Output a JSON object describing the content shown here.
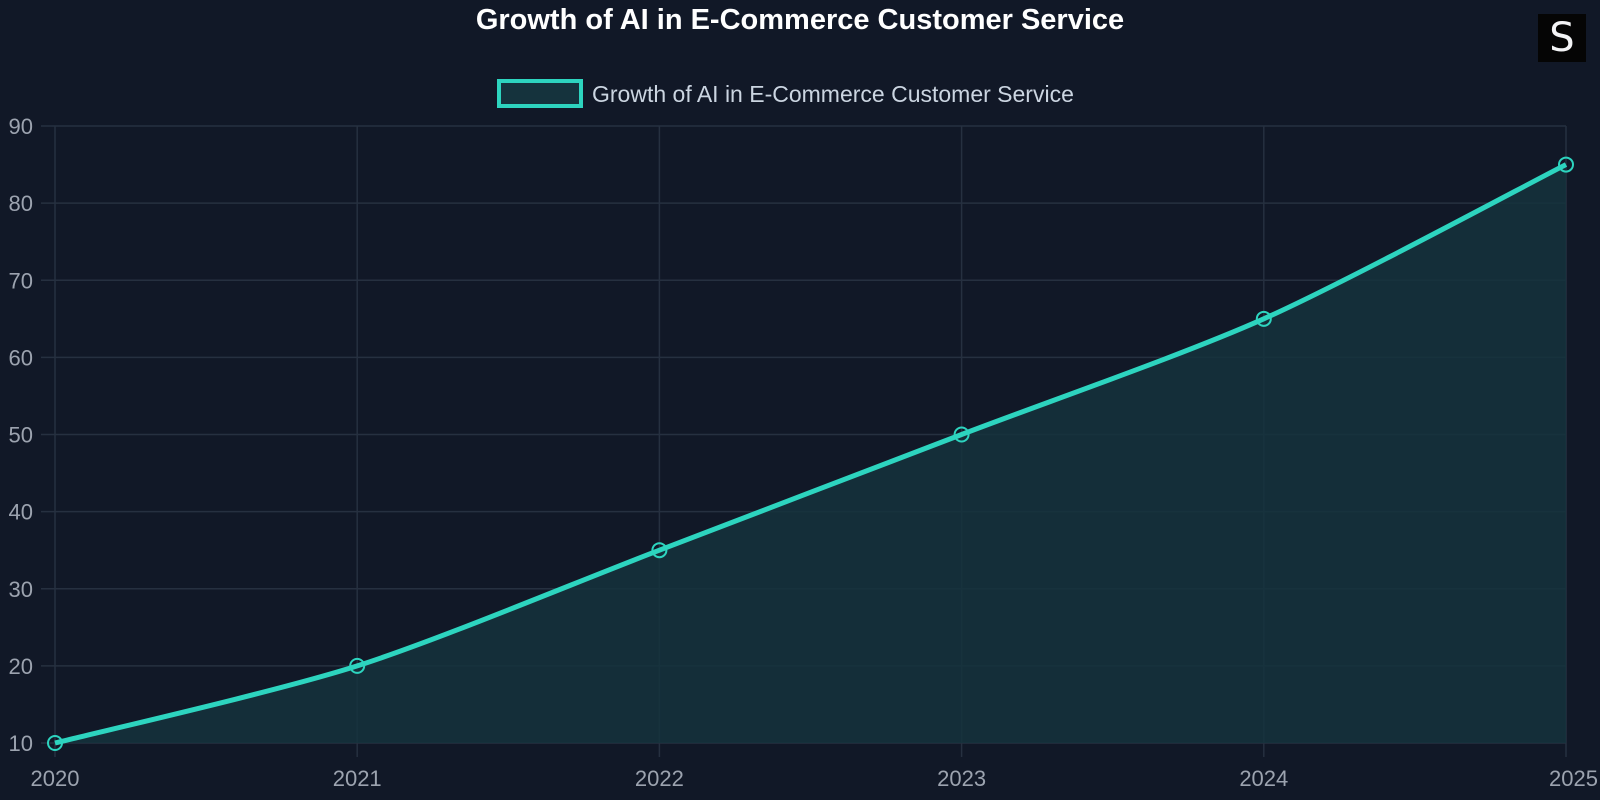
{
  "chart_data": {
    "type": "area",
    "title": "Growth of AI in E-Commerce Customer Service",
    "xlabel": "",
    "ylabel": "",
    "categories": [
      "2020",
      "2021",
      "2022",
      "2023",
      "2024",
      "2025"
    ],
    "series": [
      {
        "name": "Growth of AI in E-Commerce Customer Service",
        "values": [
          10,
          20,
          35,
          50,
          65,
          85
        ]
      }
    ],
    "ylim": [
      10,
      90
    ],
    "yticks": [
      10,
      20,
      30,
      40,
      50,
      60,
      70,
      80,
      90
    ],
    "grid": true,
    "legend": "top-center",
    "colors": {
      "line": "#2dd4bf",
      "fill": "#15333d",
      "background": "#111827",
      "grid": "#263040",
      "text": "#9ca3af",
      "title": "#ffffff"
    }
  },
  "logo": {
    "letter": "S"
  }
}
